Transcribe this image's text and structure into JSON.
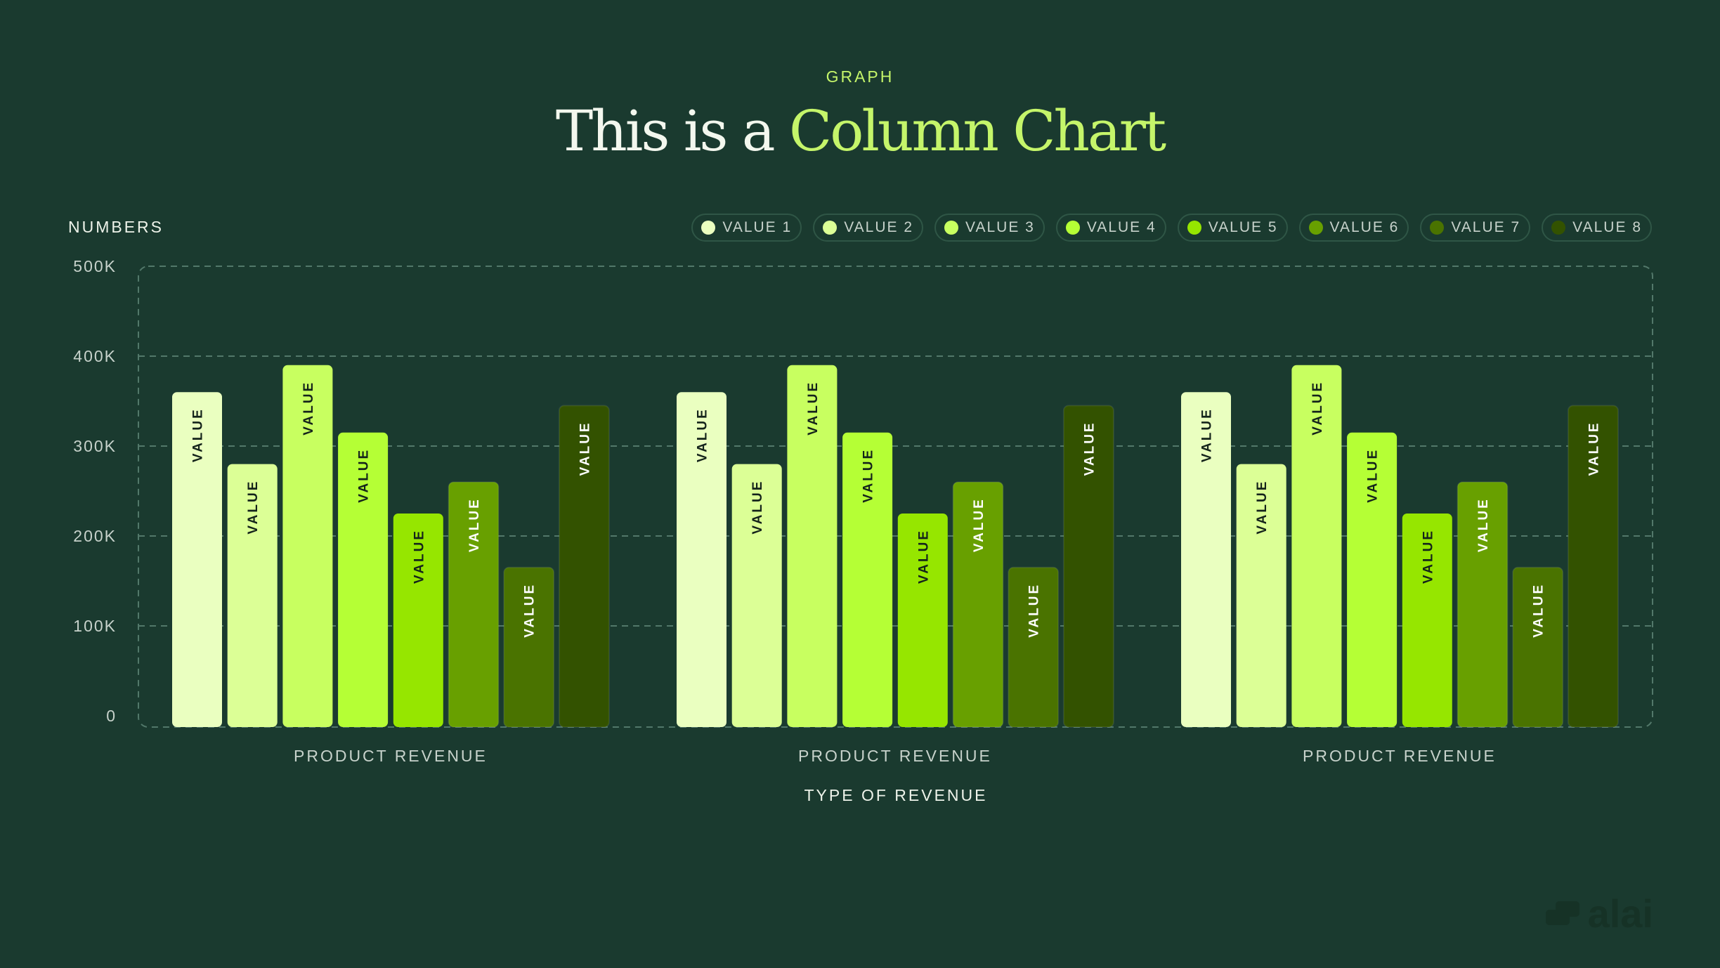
{
  "header": {
    "eyebrow": "GRAPH",
    "title_plain": "This is a ",
    "title_highlight": "Column Chart"
  },
  "logo": {
    "text": "alai"
  },
  "chart_data": {
    "type": "bar",
    "ylabel": "NUMBERS",
    "xlabel": "TYPE OF REVENUE",
    "ylim": [
      0,
      500000
    ],
    "yticks": [
      "0",
      "100K",
      "200K",
      "300K",
      "400K",
      "500K"
    ],
    "grid": true,
    "legend_position": "top-right",
    "categories": [
      "PRODUCT REVENUE",
      "PRODUCT REVENUE",
      "PRODUCT REVENUE"
    ],
    "bar_label": "VALUE",
    "series": [
      {
        "name": "VALUE 1",
        "color": "#eaffc0",
        "label_color": "#14231b",
        "values": [
          360000,
          360000,
          360000
        ]
      },
      {
        "name": "VALUE 2",
        "color": "#dcff96",
        "label_color": "#14231b",
        "values": [
          280000,
          280000,
          280000
        ]
      },
      {
        "name": "VALUE 3",
        "color": "#c8ff60",
        "label_color": "#14231b",
        "values": [
          390000,
          390000,
          390000
        ]
      },
      {
        "name": "VALUE 4",
        "color": "#b5ff35",
        "label_color": "#14231b",
        "values": [
          315000,
          315000,
          315000
        ]
      },
      {
        "name": "VALUE 5",
        "color": "#96e600",
        "label_color": "#14231b",
        "values": [
          225000,
          225000,
          225000
        ]
      },
      {
        "name": "VALUE 6",
        "color": "#68a000",
        "label_color": "#ffffff",
        "values": [
          260000,
          260000,
          260000
        ]
      },
      {
        "name": "VALUE 7",
        "color": "#4a7300",
        "label_color": "#ffffff",
        "values": [
          165000,
          165000,
          165000
        ]
      },
      {
        "name": "VALUE 8",
        "color": "#335200",
        "label_color": "#ffffff",
        "values": [
          345000,
          345000,
          345000
        ]
      }
    ]
  }
}
